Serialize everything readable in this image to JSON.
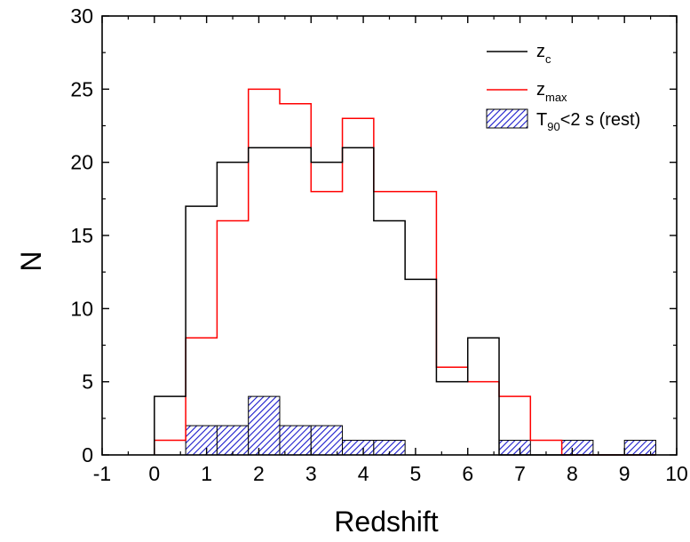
{
  "chart_data": {
    "type": "histogram",
    "xlabel": "Redshift",
    "ylabel": "N",
    "xlim": [
      -1,
      10
    ],
    "ylim": [
      0,
      30
    ],
    "x_ticks": [
      -1,
      0,
      1,
      2,
      3,
      4,
      5,
      6,
      7,
      8,
      9,
      10
    ],
    "x_tick_labels": [
      "-1",
      "0",
      "1",
      "2",
      "3",
      "4",
      "5",
      "6",
      "7",
      "8",
      "9",
      "10"
    ],
    "y_ticks": [
      0,
      5,
      10,
      15,
      20,
      25,
      30
    ],
    "y_tick_labels": [
      "0",
      "5",
      "10",
      "15",
      "20",
      "25",
      "30"
    ],
    "grid": false,
    "legend_position": "top-right",
    "bins": [
      0.0,
      0.6,
      1.2,
      1.8,
      2.4,
      3.0,
      3.6,
      4.2,
      4.8,
      5.4,
      6.0,
      6.6,
      7.2,
      7.8,
      8.4,
      9.0,
      9.6
    ],
    "series": [
      {
        "name": "z",
        "name_sub": "c",
        "style": "step",
        "color": "#000000",
        "x_start": 0.0,
        "values": [
          4,
          17,
          20,
          21,
          21,
          20,
          21,
          16,
          12,
          5,
          8,
          0,
          0,
          0,
          0,
          0
        ]
      },
      {
        "name": "z",
        "name_sub": "max",
        "style": "step",
        "color": "#ff0000",
        "x_start": 0.0,
        "values": [
          1,
          8,
          16,
          25,
          24,
          18,
          23,
          18,
          18,
          6,
          5,
          4,
          1,
          0,
          0,
          0
        ]
      },
      {
        "name": "T",
        "name_sub": "90",
        "name_rest": "<2 s (rest)",
        "style": "hatched-bar",
        "color": "#1a1acc",
        "values": [
          0,
          2,
          2,
          4,
          2,
          2,
          1,
          1,
          0,
          0,
          0,
          1,
          0,
          1,
          0,
          1
        ]
      }
    ]
  }
}
